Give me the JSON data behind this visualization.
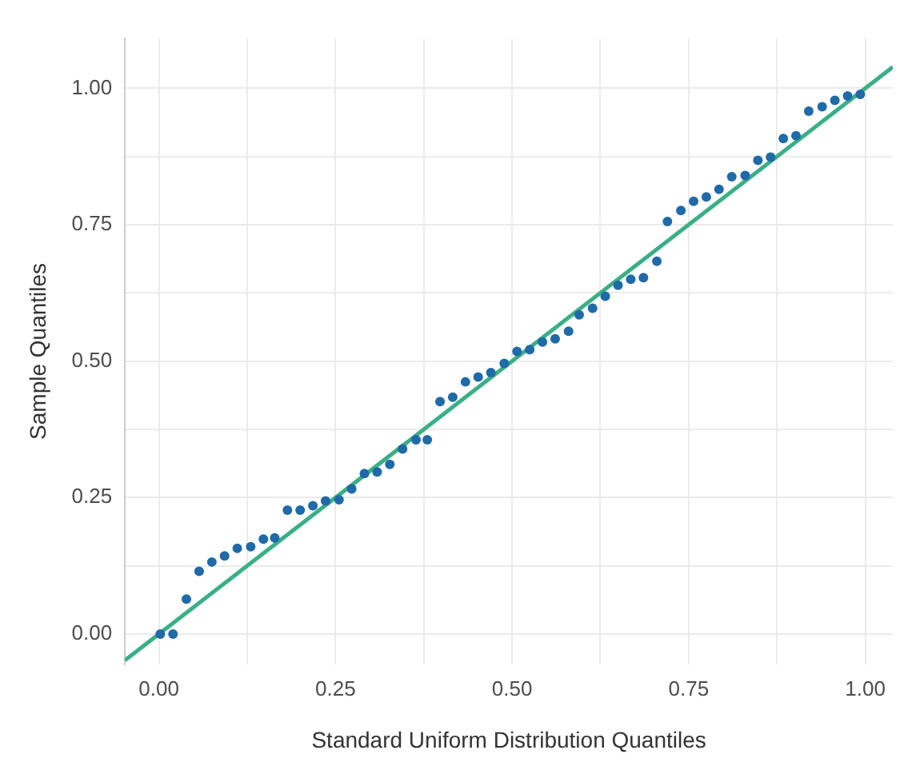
{
  "chart_data": {
    "type": "scatter",
    "xlabel": "Standard Uniform Distribution Quantiles",
    "ylabel": "Sample Quantiles",
    "x": [
      0.002,
      0.02,
      0.039,
      0.057,
      0.075,
      0.093,
      0.111,
      0.13,
      0.148,
      0.164,
      0.182,
      0.2,
      0.218,
      0.236,
      0.255,
      0.273,
      0.291,
      0.309,
      0.327,
      0.345,
      0.364,
      0.38,
      0.398,
      0.416,
      0.434,
      0.452,
      0.47,
      0.489,
      0.507,
      0.525,
      0.543,
      0.561,
      0.58,
      0.595,
      0.614,
      0.632,
      0.65,
      0.668,
      0.686,
      0.705,
      0.72,
      0.739,
      0.757,
      0.775,
      0.793,
      0.811,
      0.83,
      0.848,
      0.866,
      0.884,
      0.902,
      0.92,
      0.939,
      0.957,
      0.975,
      0.993
    ],
    "series": [
      {
        "color": "#1f6aa8",
        "marker": "circle",
        "values": [
          0.0,
          0.0,
          0.064,
          0.115,
          0.132,
          0.143,
          0.157,
          0.16,
          0.174,
          0.176,
          0.227,
          0.227,
          0.235,
          0.244,
          0.246,
          0.266,
          0.294,
          0.297,
          0.311,
          0.339,
          0.356,
          0.356,
          0.426,
          0.434,
          0.462,
          0.471,
          0.479,
          0.496,
          0.518,
          0.521,
          0.535,
          0.541,
          0.555,
          0.585,
          0.597,
          0.619,
          0.639,
          0.65,
          0.653,
          0.683,
          0.756,
          0.776,
          0.793,
          0.801,
          0.815,
          0.838,
          0.84,
          0.868,
          0.874,
          0.908,
          0.913,
          0.958,
          0.966,
          0.978,
          0.986,
          0.989
        ]
      },
      {
        "type": "line",
        "marker": "none",
        "color": "#3aaf85",
        "x": [
          -0.048,
          1.039
        ],
        "values": [
          -0.048,
          1.039
        ]
      }
    ],
    "xlim": [
      -0.048,
      1.039
    ],
    "ylim": [
      -0.056,
      1.092
    ],
    "xticks": [
      {
        "value": 0,
        "label": "0.00"
      },
      {
        "value": 0.125,
        "label": null
      },
      {
        "value": 0.25,
        "label": "0.25"
      },
      {
        "value": 0.375,
        "label": null
      },
      {
        "value": 0.5,
        "label": "0.50"
      },
      {
        "value": 0.625,
        "label": null
      },
      {
        "value": 0.75,
        "label": "0.75"
      },
      {
        "value": 0.875,
        "label": null
      },
      {
        "value": 1,
        "label": "1.00"
      }
    ],
    "yticks": [
      {
        "value": 0,
        "label": "0.00"
      },
      {
        "value": 0.125,
        "label": null
      },
      {
        "value": 0.25,
        "label": "0.25"
      },
      {
        "value": 0.375,
        "label": null
      },
      {
        "value": 0.5,
        "label": "0.50"
      },
      {
        "value": 0.625,
        "label": null
      },
      {
        "value": 0.75,
        "label": "0.75"
      },
      {
        "value": 0.875,
        "label": null
      },
      {
        "value": 1,
        "label": "1.00"
      }
    ],
    "grid": true
  }
}
